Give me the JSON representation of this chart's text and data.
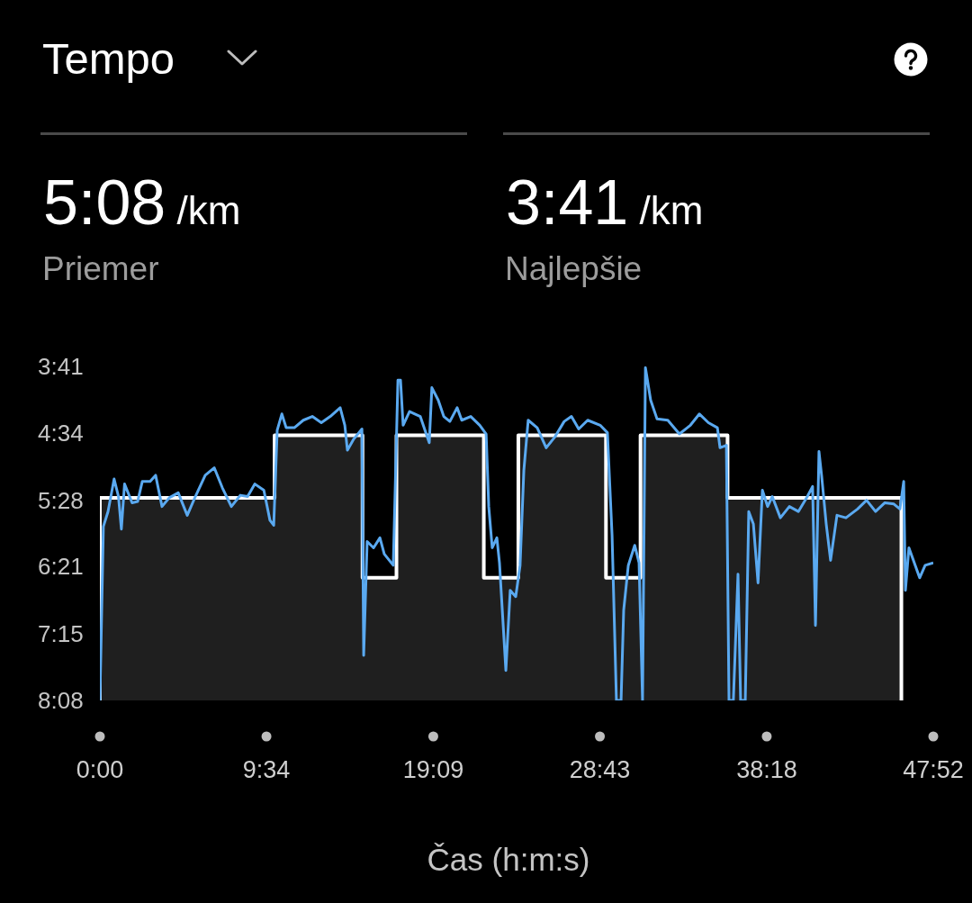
{
  "chart_data": {
    "type": "line",
    "title": "Tempo",
    "xlabel": "Čas (h:m:s)",
    "annotations": [
      "5:08 /km",
      "Priemer",
      "3:41 /km",
      "Najlepšie"
    ],
    "series": [
      {
        "type": "area",
        "color": "#ffffff",
        "x": [
          0,
          0,
          602,
          602,
          905,
          905,
          1022,
          1022,
          1323,
          1323,
          1442,
          1442,
          1744,
          1744,
          1863,
          1863,
          2163,
          2163,
          2762,
          2762
        ],
        "values": [
          488,
          326,
          326,
          276,
          276,
          390,
          390,
          276,
          276,
          390,
          390,
          276,
          276,
          390,
          390,
          276,
          276,
          326,
          326,
          488
        ]
      },
      {
        "color": "#5aa9f0",
        "x": [
          0,
          12,
          28,
          49,
          64,
          74,
          85,
          111,
          130,
          146,
          173,
          192,
          214,
          239,
          270,
          301,
          329,
          363,
          394,
          422,
          453,
          484,
          509,
          534,
          565,
          586,
          599,
          611,
          627,
          642,
          670,
          701,
          732,
          763,
          794,
          828,
          844,
          853,
          875,
          903,
          909,
          921,
          943,
          965,
          980,
          1011,
          1027,
          1036,
          1045,
          1067,
          1104,
          1135,
          1144,
          1166,
          1185,
          1206,
          1231,
          1247,
          1278,
          1309,
          1331,
          1340,
          1352,
          1368,
          1377,
          1399,
          1414,
          1433,
          1448,
          1461,
          1476,
          1507,
          1538,
          1569,
          1600,
          1625,
          1650,
          1681,
          1724,
          1749,
          1765,
          1780,
          1796,
          1805,
          1821,
          1843,
          1858,
          1870,
          1880,
          1898,
          1920,
          1957,
          1997,
          2035,
          2066,
          2097,
          2128,
          2137,
          2159,
          2168,
          2183,
          2199,
          2208,
          2224,
          2236,
          2252,
          2268,
          2283,
          2301,
          2317,
          2345,
          2376,
          2407,
          2438,
          2456,
          2466,
          2478,
          2487,
          2503,
          2518,
          2540,
          2571,
          2611,
          2642,
          2673,
          2705,
          2736,
          2757,
          2770,
          2776,
          2788,
          2825,
          2844,
          2872
        ],
        "values": [
          488,
          349,
          337,
          311,
          325,
          351,
          315,
          330,
          329,
          313,
          313,
          308,
          333,
          326,
          322,
          340,
          325,
          308,
          302,
          318,
          333,
          324,
          325,
          315,
          320,
          344,
          348,
          272,
          259,
          270,
          270,
          264,
          261,
          266,
          261,
          254,
          268,
          288,
          279,
          271,
          452,
          361,
          366,
          358,
          371,
          380,
          232,
          232,
          268,
          257,
          261,
          282,
          238,
          248,
          261,
          265,
          254,
          264,
          261,
          268,
          275,
          333,
          366,
          358,
          378,
          464,
          400,
          405,
          380,
          304,
          264,
          270,
          286,
          277,
          265,
          261,
          271,
          264,
          268,
          274,
          356,
          488,
          488,
          416,
          380,
          364,
          378,
          488,
          222,
          248,
          263,
          264,
          275,
          268,
          259,
          266,
          270,
          286,
          284,
          488,
          488,
          387,
          488,
          488,
          337,
          347,
          394,
          320,
          333,
          325,
          342,
          333,
          337,
          325,
          317,
          428,
          289,
          308,
          347,
          376,
          340,
          342,
          335,
          328,
          337,
          330,
          331,
          335,
          313,
          400,
          366,
          390,
          380,
          378
        ]
      }
    ],
    "xlim": [
      0,
      2872
    ],
    "xticks": [
      {
        "value": 0,
        "label": "0:00"
      },
      {
        "value": 574,
        "label": "9:34"
      },
      {
        "value": 1149,
        "label": "19:09"
      },
      {
        "value": 1723,
        "label": "28:43"
      },
      {
        "value": 2298,
        "label": "38:18"
      },
      {
        "value": 2872,
        "label": "47:52"
      }
    ],
    "ylim": [
      488,
      221
    ],
    "yticks": [
      {
        "value": 221,
        "label": "3:41"
      },
      {
        "value": 274,
        "label": "4:34"
      },
      {
        "value": 328,
        "label": "5:28"
      },
      {
        "value": 381,
        "label": "6:21"
      },
      {
        "value": 435,
        "label": "7:15"
      },
      {
        "value": 488,
        "label": "8:08"
      }
    ]
  }
}
